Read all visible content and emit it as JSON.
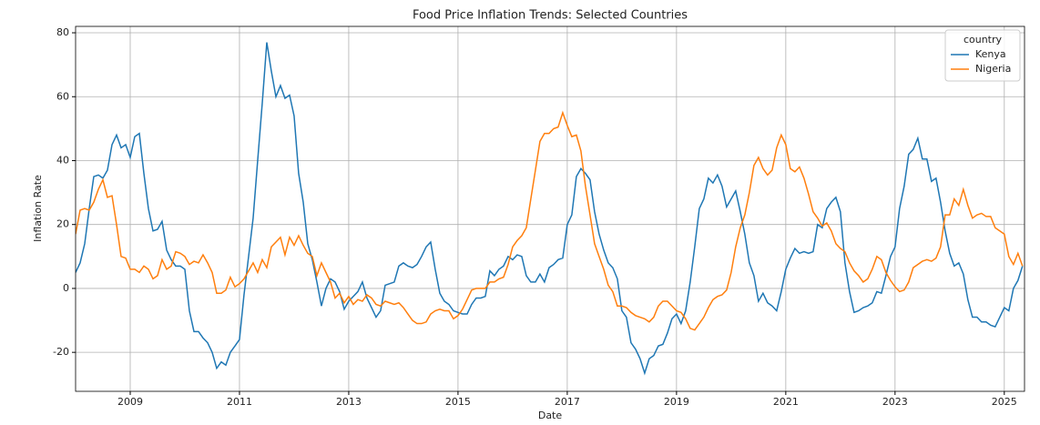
{
  "chart_data": {
    "type": "line",
    "title": "Food Price Inflation Trends: Selected Countries",
    "x_label": "Date",
    "y_label": "Inflation Rate",
    "legend_title": "country",
    "legend_position": "upper right",
    "grid": true,
    "xlim": [
      2008,
      2025.37
    ],
    "ylim": [
      -32.2,
      82
    ],
    "xticks": [
      2009,
      2011,
      2013,
      2015,
      2017,
      2019,
      2021,
      2023,
      2025
    ],
    "yticks": [
      -20,
      0,
      20,
      40,
      60,
      80
    ],
    "x": [
      2008,
      2008.083,
      2008.167,
      2008.25,
      2008.333,
      2008.417,
      2008.5,
      2008.583,
      2008.667,
      2008.75,
      2008.833,
      2008.917,
      2009,
      2009.083,
      2009.167,
      2009.25,
      2009.333,
      2009.417,
      2009.5,
      2009.583,
      2009.667,
      2009.75,
      2009.833,
      2009.917,
      2010,
      2010.083,
      2010.167,
      2010.25,
      2010.333,
      2010.417,
      2010.5,
      2010.583,
      2010.667,
      2010.75,
      2010.833,
      2010.917,
      2011,
      2011.083,
      2011.167,
      2011.25,
      2011.333,
      2011.417,
      2011.5,
      2011.583,
      2011.667,
      2011.75,
      2011.833,
      2011.917,
      2012,
      2012.083,
      2012.167,
      2012.25,
      2012.333,
      2012.417,
      2012.5,
      2012.583,
      2012.667,
      2012.75,
      2012.833,
      2012.917,
      2013,
      2013.083,
      2013.167,
      2013.25,
      2013.333,
      2013.417,
      2013.5,
      2013.583,
      2013.667,
      2013.75,
      2013.833,
      2013.917,
      2014,
      2014.083,
      2014.167,
      2014.25,
      2014.333,
      2014.417,
      2014.5,
      2014.583,
      2014.667,
      2014.75,
      2014.833,
      2014.917,
      2015,
      2015.083,
      2015.167,
      2015.25,
      2015.333,
      2015.417,
      2015.5,
      2015.583,
      2015.667,
      2015.75,
      2015.833,
      2015.917,
      2016,
      2016.083,
      2016.167,
      2016.25,
      2016.333,
      2016.417,
      2016.5,
      2016.583,
      2016.667,
      2016.75,
      2016.833,
      2016.917,
      2017,
      2017.083,
      2017.167,
      2017.25,
      2017.333,
      2017.417,
      2017.5,
      2017.583,
      2017.667,
      2017.75,
      2017.833,
      2017.917,
      2018,
      2018.083,
      2018.167,
      2018.25,
      2018.333,
      2018.417,
      2018.5,
      2018.583,
      2018.667,
      2018.75,
      2018.833,
      2018.917,
      2019,
      2019.083,
      2019.167,
      2019.25,
      2019.333,
      2019.417,
      2019.5,
      2019.583,
      2019.667,
      2019.75,
      2019.833,
      2019.917,
      2020,
      2020.083,
      2020.167,
      2020.25,
      2020.333,
      2020.417,
      2020.5,
      2020.583,
      2020.667,
      2020.75,
      2020.833,
      2020.917,
      2021,
      2021.083,
      2021.167,
      2021.25,
      2021.333,
      2021.417,
      2021.5,
      2021.583,
      2021.667,
      2021.75,
      2021.833,
      2021.917,
      2022,
      2022.083,
      2022.167,
      2022.25,
      2022.333,
      2022.417,
      2022.5,
      2022.583,
      2022.667,
      2022.75,
      2022.833,
      2022.917,
      2023,
      2023.083,
      2023.167,
      2023.25,
      2023.333,
      2023.417,
      2023.5,
      2023.583,
      2023.667,
      2023.75,
      2023.833,
      2023.917,
      2024,
      2024.083,
      2024.167,
      2024.25,
      2024.333,
      2024.417,
      2024.5,
      2024.583,
      2024.667,
      2024.75,
      2024.833,
      2024.917,
      2025,
      2025.083,
      2025.167,
      2025.25,
      2025.333
    ],
    "series": [
      {
        "name": "Kenya",
        "color": "#1f77b4",
        "values": [
          5,
          8,
          14,
          25,
          35,
          35.5,
          34.5,
          37,
          45,
          48,
          44,
          45,
          41,
          47.5,
          48.5,
          36,
          25,
          18,
          18.5,
          21,
          12,
          9,
          7,
          7,
          6,
          -7,
          -13.5,
          -13.5,
          -15.5,
          -17,
          -20,
          -25,
          -23,
          -24,
          -20,
          -18,
          -16,
          -2,
          10,
          22,
          40,
          58,
          77,
          68,
          60,
          63.5,
          59.5,
          60.5,
          54,
          36,
          27,
          14,
          9,
          2,
          -5.5,
          0,
          3,
          2,
          -1,
          -6.5,
          -4,
          -2.5,
          -1,
          2,
          -3,
          -6,
          -9,
          -7,
          1,
          1.5,
          2,
          7,
          8,
          7,
          6.5,
          7.5,
          10,
          13,
          14.5,
          6,
          -1.5,
          -4,
          -5,
          -7,
          -7.5,
          -8,
          -8,
          -5,
          -3,
          -3,
          -2.5,
          5.5,
          4,
          6,
          7,
          10,
          9,
          10.5,
          10,
          4,
          2,
          2,
          4.5,
          2,
          6.5,
          7.5,
          9,
          9.5,
          20,
          23,
          35,
          37.5,
          36,
          34,
          24,
          17,
          12,
          8,
          6.5,
          3,
          -7,
          -9,
          -17,
          -19,
          -22,
          -26.5,
          -22,
          -21,
          -18,
          -17.5,
          -14,
          -9.5,
          -8,
          -11,
          -7,
          2,
          13,
          25,
          28,
          34.5,
          33,
          35.5,
          32,
          25.5,
          28,
          30.5,
          24,
          17,
          8,
          4,
          -4,
          -1.5,
          -4.5,
          -5.5,
          -7,
          -1,
          6,
          9.5,
          12.5,
          11,
          11.5,
          11,
          11.5,
          20,
          19,
          25,
          27,
          28.5,
          24,
          8,
          -1,
          -7.5,
          -7,
          -6,
          -5.5,
          -4.5,
          -1,
          -1.5,
          4,
          10,
          13,
          25,
          32,
          42,
          43.5,
          47,
          40.5,
          40.5,
          33.5,
          34.5,
          27,
          18,
          11,
          7,
          8,
          4.5,
          -3.5,
          -9,
          -9,
          -10.5,
          -10.5,
          -11.5,
          -12,
          -9,
          -6,
          -7,
          0,
          2.5,
          7
        ]
      },
      {
        "name": "Nigeria",
        "color": "#ff7f0e",
        "values": [
          17,
          24.5,
          25,
          24.5,
          27,
          31,
          34,
          28.5,
          29,
          20,
          10,
          9.5,
          6,
          6,
          5,
          7,
          6,
          3,
          4,
          9,
          6,
          7,
          11.5,
          11,
          10,
          7.5,
          8.5,
          8,
          10.5,
          8,
          5,
          -1.5,
          -1.5,
          -0.5,
          3.5,
          0.5,
          1.5,
          3,
          5.5,
          8,
          5,
          9,
          6.5,
          13,
          14.5,
          16,
          10.5,
          16,
          13.5,
          16.5,
          13.5,
          11,
          10,
          4,
          8,
          5,
          2,
          -3,
          -1.5,
          -4.5,
          -2.5,
          -5,
          -3.5,
          -4,
          -2,
          -3,
          -5,
          -5.5,
          -4,
          -4.5,
          -5,
          -4.5,
          -6,
          -8,
          -10,
          -11,
          -11,
          -10.5,
          -8,
          -7,
          -6.5,
          -7,
          -7,
          -9.5,
          -8.5,
          -6.5,
          -3.5,
          -0.5,
          0,
          0,
          0,
          2,
          2,
          3,
          3.5,
          7.5,
          13,
          15,
          16.5,
          19,
          28,
          37,
          46,
          48.5,
          48.5,
          50,
          50.5,
          55,
          51,
          47.5,
          48,
          43,
          32,
          23,
          14,
          10,
          6,
          1,
          -1,
          -5.5,
          -5.5,
          -6,
          -7.5,
          -8.5,
          -9,
          -9.5,
          -10.5,
          -9,
          -5.5,
          -4,
          -4,
          -5.5,
          -7,
          -7.5,
          -9.5,
          -12.5,
          -13,
          -11,
          -9,
          -6,
          -3.5,
          -2.5,
          -2,
          -0.5,
          5,
          13,
          19,
          23,
          30,
          38.5,
          41,
          37.5,
          35.5,
          37,
          44,
          48,
          45,
          37.5,
          36.5,
          38,
          34.5,
          29.5,
          24,
          22,
          19.5,
          20.5,
          18,
          14,
          12.5,
          11.5,
          8,
          5.5,
          4,
          2,
          3,
          6,
          10,
          9,
          5,
          2.5,
          0.5,
          -1,
          -0.5,
          2,
          6.5,
          7.5,
          8.5,
          9,
          8.5,
          9.5,
          13,
          23,
          23,
          28,
          26,
          31,
          26,
          22,
          23,
          23.5,
          22.5,
          22.5,
          19,
          18,
          17,
          10,
          7.5,
          11,
          7
        ]
      }
    ]
  }
}
